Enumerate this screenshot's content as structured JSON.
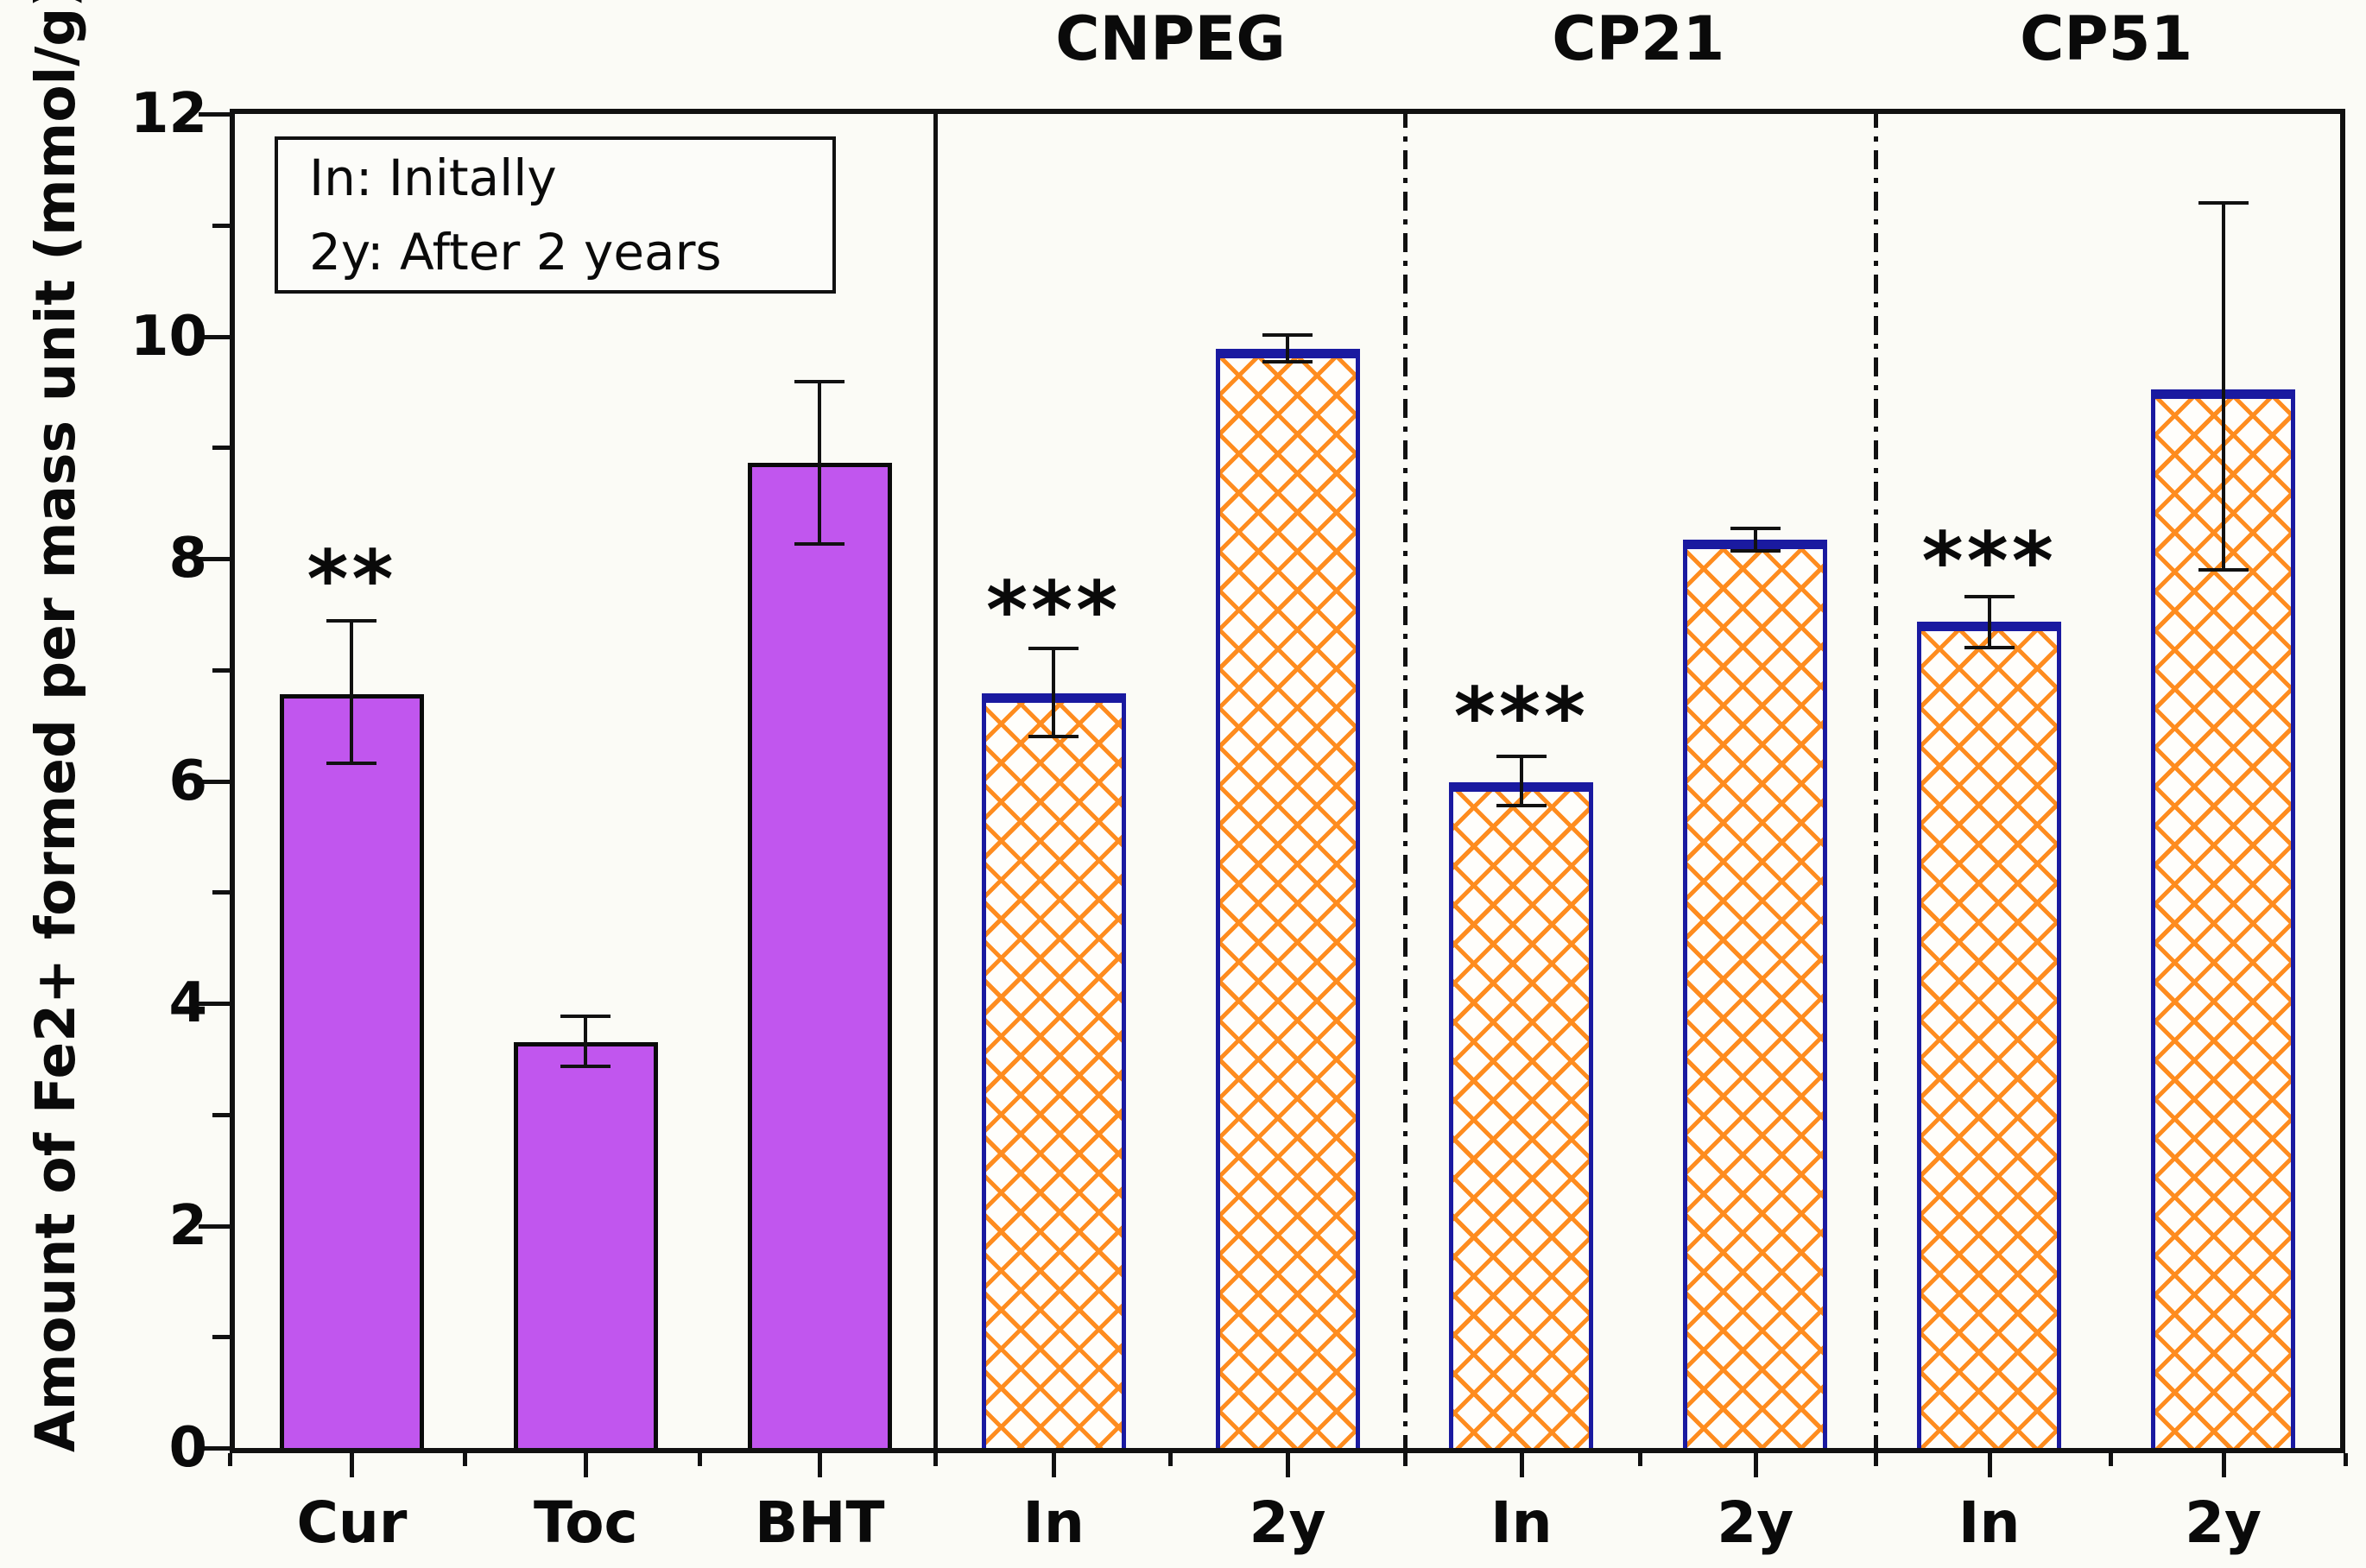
{
  "figure": {
    "background": "#fbfbf6",
    "legend": {
      "lines": [
        "In: Initally",
        "2y: After 2 years"
      ]
    }
  },
  "chart_data": {
    "type": "bar",
    "title": "",
    "xlabel": "",
    "ylabel": "Amount of Fe2+ formed per mass unit (mmol/g)",
    "ylim": [
      0,
      12
    ],
    "yticks_major": [
      0,
      2,
      4,
      6,
      8,
      10,
      12
    ],
    "yticks_minor": [
      1,
      3,
      5,
      7,
      9,
      11
    ],
    "grid": "off",
    "legend_position": "top-left-inside",
    "categories": [
      "Cur",
      "Toc",
      "BHT",
      "In",
      "2y",
      "In",
      "2y",
      "In",
      "2y"
    ],
    "bars": [
      {
        "label": "Cur",
        "group": "",
        "value": 6.78,
        "err_up": 0.66,
        "err_down": 0.62,
        "style": "purple",
        "sig": "**",
        "sig_y": 7.94
      },
      {
        "label": "Toc",
        "group": "",
        "value": 3.65,
        "err_up": 0.23,
        "err_down": 0.22,
        "style": "purple",
        "sig": "",
        "sig_y": null
      },
      {
        "label": "BHT",
        "group": "",
        "value": 8.86,
        "err_up": 0.73,
        "err_down": 0.73,
        "style": "purple",
        "sig": "",
        "sig_y": null
      },
      {
        "label": "In",
        "group": "CNPEG",
        "value": 6.79,
        "err_up": 0.4,
        "err_down": 0.39,
        "style": "hatch",
        "sig": "***",
        "sig_y": 7.66
      },
      {
        "label": "2y",
        "group": "CNPEG",
        "value": 9.89,
        "err_up": 0.12,
        "err_down": 0.12,
        "style": "hatch",
        "sig": "",
        "sig_y": null
      },
      {
        "label": "In",
        "group": "CP21",
        "value": 5.99,
        "err_up": 0.23,
        "err_down": 0.21,
        "style": "hatch",
        "sig": "***",
        "sig_y": 6.7
      },
      {
        "label": "2y",
        "group": "CP21",
        "value": 8.17,
        "err_up": 0.1,
        "err_down": 0.1,
        "style": "hatch",
        "sig": "",
        "sig_y": null
      },
      {
        "label": "In",
        "group": "CP51",
        "value": 7.43,
        "err_up": 0.23,
        "err_down": 0.23,
        "style": "hatch",
        "sig": "***",
        "sig_y": 8.1
      },
      {
        "label": "2y",
        "group": "CP51",
        "value": 9.52,
        "err_up": 1.68,
        "err_down": 1.62,
        "style": "hatch",
        "sig": "",
        "sig_y": null
      }
    ],
    "group_headers": [
      {
        "label": "CNPEG",
        "slots": [
          3,
          4
        ]
      },
      {
        "label": "CP21",
        "slots": [
          5,
          6
        ]
      },
      {
        "label": "CP51",
        "slots": [
          7,
          8
        ]
      }
    ],
    "dividers": [
      {
        "after_slot": 3,
        "style": "solid"
      },
      {
        "after_slot": 5,
        "style": "dashdot"
      },
      {
        "after_slot": 7,
        "style": "dashdot"
      }
    ],
    "colors": {
      "purple_fill": "#c156ee",
      "purple_border": "#0a0a0a",
      "hatch_line": "#fe8c1f",
      "hatch_border": "#1a1aa0",
      "axis": "#111111",
      "background": "#fbfbf6"
    }
  }
}
